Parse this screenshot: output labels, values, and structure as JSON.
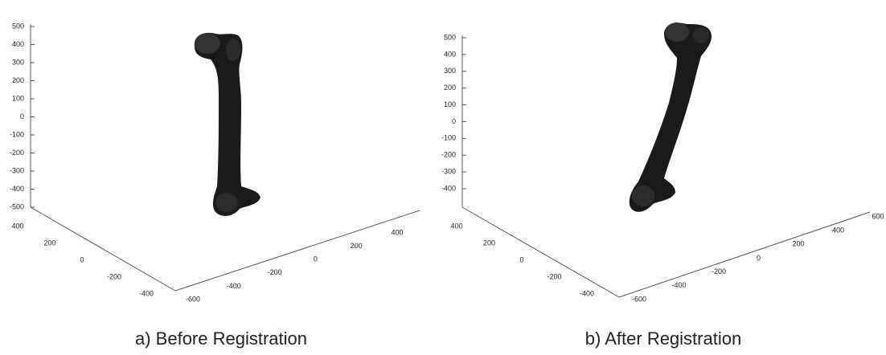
{
  "panels": [
    {
      "caption": "a) Before Registration",
      "z_ticks": [
        500,
        400,
        300,
        200,
        100,
        0,
        -100,
        -200,
        -300,
        -400,
        -500
      ],
      "y_ticks": [
        400,
        200,
        0,
        -200,
        -400
      ],
      "x_ticks": [
        -600,
        -400,
        -200,
        0,
        200,
        400
      ]
    },
    {
      "caption": "b) After Registration",
      "z_ticks": [
        500,
        400,
        300,
        200,
        100,
        0,
        -100,
        -200,
        -300,
        -400
      ],
      "y_ticks": [
        400,
        200,
        0,
        -200,
        -400
      ],
      "x_ticks": [
        -600,
        -400,
        -200,
        0,
        200,
        400,
        600
      ]
    }
  ]
}
